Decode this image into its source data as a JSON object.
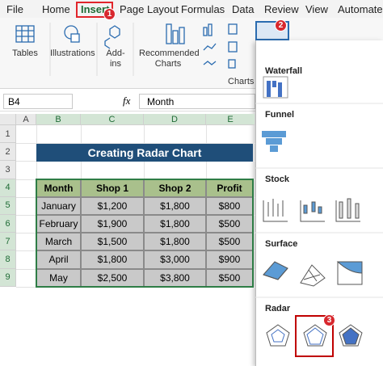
{
  "tabs": [
    "File",
    "Home",
    "Insert",
    "Page Layout",
    "Formulas",
    "Data",
    "Review",
    "View",
    "Automate"
  ],
  "ribbon": {
    "tables": "Tables",
    "illustrations": "Illustrations",
    "addins": [
      "Add-",
      "ins"
    ],
    "recommended": [
      "Recommended",
      "Charts"
    ],
    "charts_group": "Charts"
  },
  "formula_bar": {
    "name_box": "B4",
    "fx": "fx",
    "content": "Month"
  },
  "columns": [
    "A",
    "B",
    "C",
    "D",
    "E"
  ],
  "rows": [
    1,
    2,
    3,
    4,
    5,
    6,
    7,
    8,
    9
  ],
  "title": "Creating Radar Chart",
  "table": {
    "header": [
      "Month",
      "Shop 1",
      "Shop 2",
      "Profit"
    ],
    "rows": [
      [
        "January",
        "$1,200",
        "$1,800",
        "$800"
      ],
      [
        "February",
        "$1,900",
        "$1,800",
        "$500"
      ],
      [
        "March",
        "$1,500",
        "$1,800",
        "$500"
      ],
      [
        "April",
        "$1,800",
        "$3,000",
        "$900"
      ],
      [
        "May",
        "$2,500",
        "$3,800",
        "$500"
      ]
    ]
  },
  "chart_menu": {
    "sections": [
      "Waterfall",
      "Funnel",
      "Stock",
      "Surface",
      "Radar"
    ]
  },
  "badges": [
    "1",
    "2",
    "3"
  ]
}
